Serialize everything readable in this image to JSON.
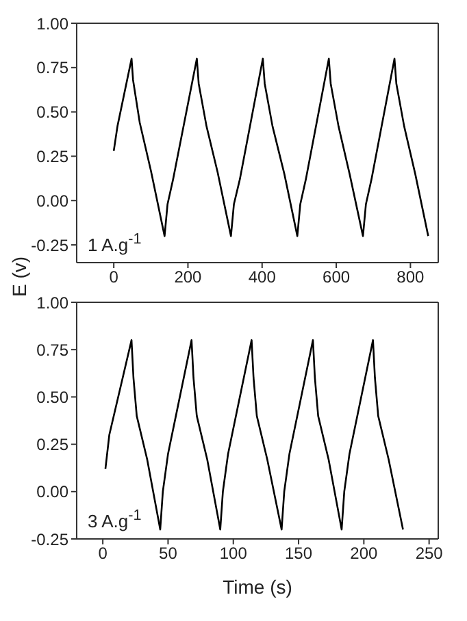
{
  "chart_data": [
    {
      "type": "line",
      "annotations": [
        "1 A.g$^{-1}$"
      ],
      "xlim": [
        -100,
        875
      ],
      "xticks": [
        0,
        200,
        400,
        600,
        800
      ],
      "ylim": [
        -0.35,
        1.0
      ],
      "yticks": [
        {
          "value": -0.25,
          "label": "-0.25"
        },
        {
          "value": 0,
          "label": "0.00"
        },
        {
          "value": 0.25,
          "label": "0.25"
        },
        {
          "value": 0.5,
          "label": "0.50"
        },
        {
          "value": 0.75,
          "label": "0.75"
        },
        {
          "value": 1,
          "label": "1.00"
        }
      ],
      "grid": false,
      "legend": false,
      "marker": "none",
      "x": [
        0,
        10,
        48,
        52,
        70,
        100,
        137,
        145,
        160,
        224,
        229,
        250,
        280,
        316,
        324,
        340,
        402,
        407,
        428,
        460,
        495,
        503,
        518,
        580,
        585,
        606,
        636,
        672,
        680,
        695,
        757,
        762,
        783,
        813,
        848
      ],
      "series": [
        {
          "color": "#000000",
          "values": [
            0.28,
            0.42,
            0.8,
            0.68,
            0.44,
            0.17,
            -0.2,
            -0.02,
            0.12,
            0.8,
            0.66,
            0.42,
            0.16,
            -0.2,
            -0.02,
            0.12,
            0.8,
            0.66,
            0.42,
            0.15,
            -0.2,
            -0.02,
            0.12,
            0.8,
            0.66,
            0.42,
            0.15,
            -0.2,
            -0.02,
            0.12,
            0.8,
            0.66,
            0.42,
            0.15,
            -0.2
          ]
        }
      ]
    },
    {
      "type": "line",
      "xlabel": "Time (s)",
      "ylabel": "E (v)",
      "annotations": [
        "3 A.g$^{-1}$"
      ],
      "xlim": [
        -20,
        257
      ],
      "xticks": [
        0,
        50,
        100,
        150,
        200,
        250
      ],
      "ylim": [
        -0.25,
        1.0
      ],
      "yticks": [
        {
          "value": -0.25,
          "label": "-0.25"
        },
        {
          "value": 0,
          "label": "0.00"
        },
        {
          "value": 0.25,
          "label": "0.25"
        },
        {
          "value": 0.5,
          "label": "0.50"
        },
        {
          "value": 0.75,
          "label": "0.75"
        },
        {
          "value": 1,
          "label": "1.00"
        }
      ],
      "grid": false,
      "legend": false,
      "marker": "none",
      "x": [
        2,
        5,
        22,
        23.5,
        26,
        34,
        44,
        46,
        50,
        68,
        69.5,
        72,
        80,
        90,
        92,
        96,
        114,
        115.5,
        118,
        126,
        137,
        139,
        143,
        161,
        162.5,
        165,
        173,
        183,
        185,
        189,
        207,
        208.5,
        211,
        219,
        230
      ],
      "series": [
        {
          "color": "#000000",
          "values": [
            0.12,
            0.3,
            0.8,
            0.6,
            0.4,
            0.17,
            -0.2,
            0.0,
            0.2,
            0.8,
            0.6,
            0.4,
            0.17,
            -0.2,
            0.0,
            0.2,
            0.8,
            0.6,
            0.4,
            0.17,
            -0.2,
            0.0,
            0.2,
            0.8,
            0.6,
            0.4,
            0.17,
            -0.2,
            0.0,
            0.2,
            0.8,
            0.6,
            0.4,
            0.17,
            -0.2
          ]
        }
      ]
    }
  ]
}
